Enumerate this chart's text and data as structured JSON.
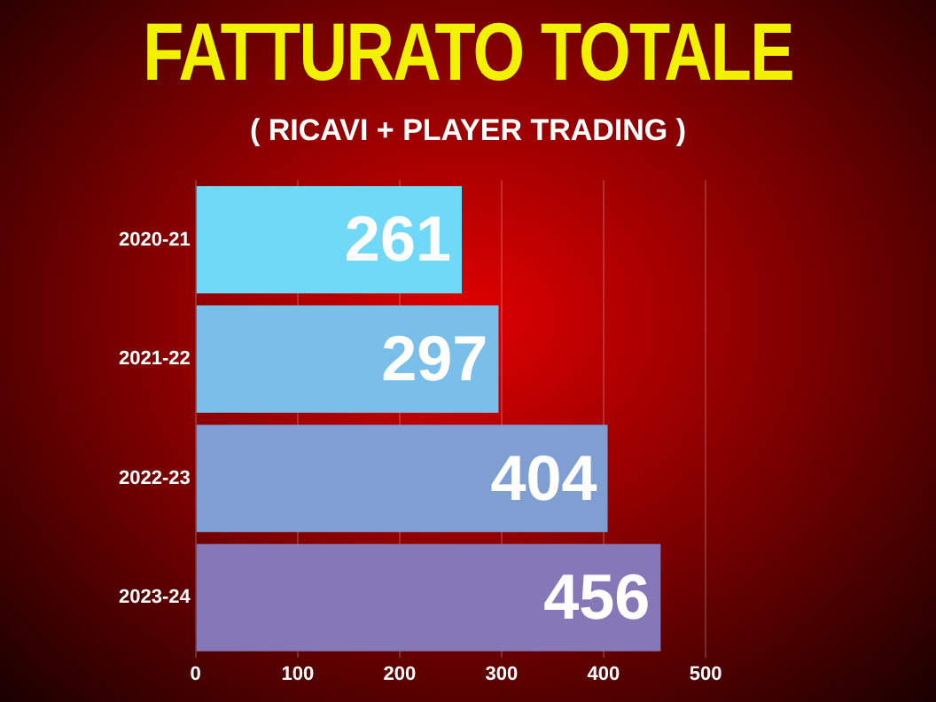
{
  "chart_data": {
    "type": "bar",
    "orientation": "horizontal",
    "title": "FATTURATO TOTALE",
    "subtitle": "( RICAVI + PLAYER TRADING )",
    "categories": [
      "2020-21",
      "2021-22",
      "2022-23",
      "2023-24"
    ],
    "values": [
      261,
      297,
      404,
      456
    ],
    "colors": [
      "#6fd9f7",
      "#79bfe9",
      "#7f9fd2",
      "#8577b8"
    ],
    "xlim": [
      0,
      500
    ],
    "xticks": [
      0,
      100,
      200,
      300,
      400,
      500
    ],
    "grid": "x",
    "legend": false,
    "data_labels": true
  }
}
